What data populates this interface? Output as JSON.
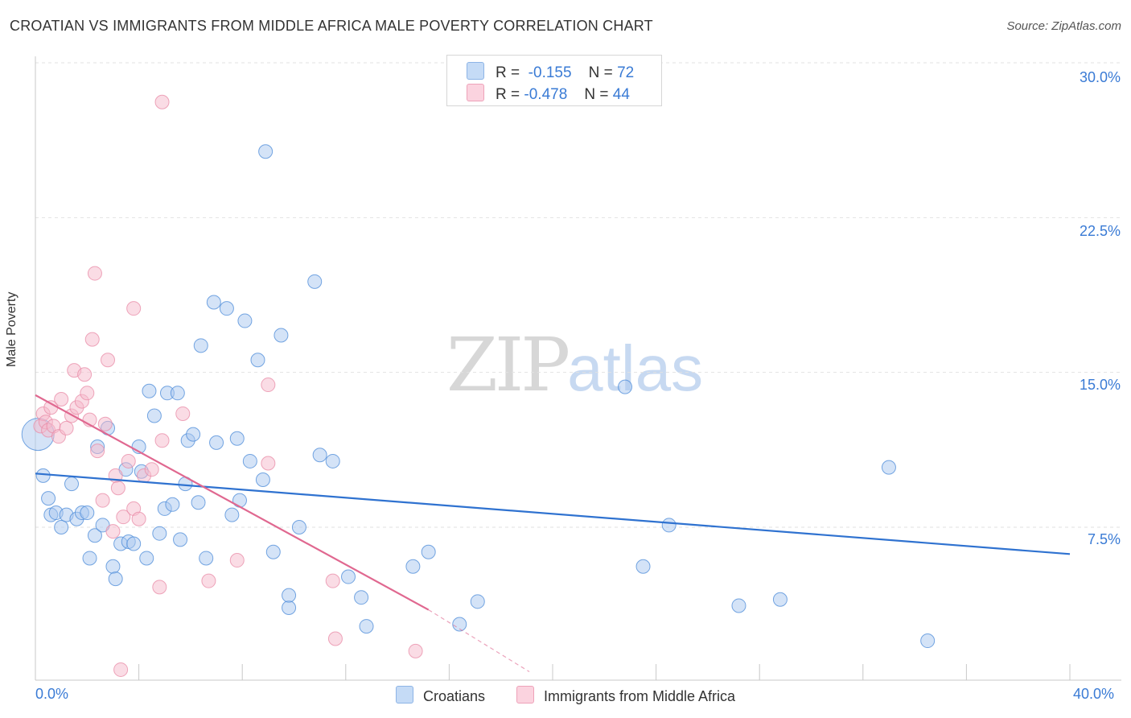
{
  "title": "CROATIAN VS IMMIGRANTS FROM MIDDLE AFRICA MALE POVERTY CORRELATION CHART",
  "source": "Source: ZipAtlas.com",
  "watermark": {
    "zip": "ZIP",
    "atlas": "atlas"
  },
  "legend": {
    "r_label": "R =",
    "n_label": "N =",
    "rows": [
      {
        "r": "-0.155",
        "n": "72",
        "color": "#a9c8f0"
      },
      {
        "r": "-0.478",
        "n": "44",
        "color": "#f6b9cb"
      }
    ]
  },
  "bottom_legend": [
    {
      "label": "Croatians",
      "color": "#a9c8f0"
    },
    {
      "label": "Immigrants from Middle Africa",
      "color": "#f6b9cb"
    }
  ],
  "y_ticks": [
    "30.0%",
    "22.5%",
    "15.0%",
    "7.5%"
  ],
  "x_ticks": [
    "0.0%",
    "40.0%"
  ],
  "chart_data": {
    "type": "scatter",
    "title": "CROATIAN VS IMMIGRANTS FROM MIDDLE AFRICA MALE POVERTY CORRELATION CHART",
    "xlabel": "",
    "ylabel": "Male Poverty",
    "xlim": [
      0,
      40
    ],
    "ylim": [
      0,
      30.7
    ],
    "y_gridlines": [
      7.5,
      15.0,
      22.5,
      30.0
    ],
    "legend_position": "top-center",
    "series": [
      {
        "name": "Croatians",
        "color": "#4a8ad8",
        "fill": "#a9c8f0",
        "trendline": {
          "x": [
            0,
            40
          ],
          "y": [
            10.1,
            6.2
          ],
          "color": "#2f72d0"
        },
        "points": [
          [
            0.1,
            12.0
          ],
          [
            0.3,
            10.0
          ],
          [
            0.5,
            8.9
          ],
          [
            0.6,
            8.1
          ],
          [
            0.8,
            8.2
          ],
          [
            1.0,
            7.5
          ],
          [
            1.2,
            8.1
          ],
          [
            1.4,
            9.6
          ],
          [
            1.6,
            7.9
          ],
          [
            1.8,
            8.2
          ],
          [
            2.0,
            8.2
          ],
          [
            2.1,
            6.0
          ],
          [
            2.3,
            7.1
          ],
          [
            2.4,
            11.4
          ],
          [
            2.6,
            7.6
          ],
          [
            2.8,
            12.3
          ],
          [
            3.0,
            5.6
          ],
          [
            3.1,
            5.0
          ],
          [
            3.3,
            6.7
          ],
          [
            3.5,
            10.3
          ],
          [
            3.6,
            6.8
          ],
          [
            3.8,
            6.7
          ],
          [
            4.0,
            11.4
          ],
          [
            4.1,
            10.2
          ],
          [
            4.3,
            6.0
          ],
          [
            4.4,
            14.1
          ],
          [
            4.6,
            12.9
          ],
          [
            4.8,
            7.2
          ],
          [
            5.0,
            8.4
          ],
          [
            5.1,
            14.0
          ],
          [
            5.3,
            8.6
          ],
          [
            5.5,
            14.0
          ],
          [
            5.6,
            6.9
          ],
          [
            5.8,
            9.6
          ],
          [
            5.9,
            11.7
          ],
          [
            6.1,
            12.0
          ],
          [
            6.3,
            8.7
          ],
          [
            6.4,
            16.3
          ],
          [
            6.6,
            6.0
          ],
          [
            6.9,
            18.4
          ],
          [
            7.0,
            11.6
          ],
          [
            7.4,
            18.1
          ],
          [
            7.6,
            8.1
          ],
          [
            7.8,
            11.8
          ],
          [
            7.9,
            8.8
          ],
          [
            8.3,
            10.7
          ],
          [
            8.1,
            17.5
          ],
          [
            8.6,
            15.6
          ],
          [
            8.8,
            9.8
          ],
          [
            8.9,
            25.7
          ],
          [
            9.2,
            6.3
          ],
          [
            9.5,
            16.8
          ],
          [
            9.8,
            3.6
          ],
          [
            9.8,
            4.2
          ],
          [
            10.2,
            7.5
          ],
          [
            10.8,
            19.4
          ],
          [
            11.0,
            11.0
          ],
          [
            11.5,
            10.7
          ],
          [
            12.1,
            5.1
          ],
          [
            12.6,
            4.1
          ],
          [
            12.8,
            2.7
          ],
          [
            14.6,
            5.6
          ],
          [
            15.2,
            6.3
          ],
          [
            16.4,
            2.8
          ],
          [
            17.1,
            3.9
          ],
          [
            22.8,
            14.3
          ],
          [
            23.5,
            5.6
          ],
          [
            24.5,
            7.6
          ],
          [
            27.2,
            3.7
          ],
          [
            28.8,
            4.0
          ],
          [
            33.0,
            10.4
          ],
          [
            34.5,
            2.0
          ]
        ]
      },
      {
        "name": "Immigrants from Middle Africa",
        "color": "#e88aa6",
        "fill": "#f6b9cb",
        "trendline": {
          "x": [
            0,
            15.2
          ],
          "y": [
            13.9,
            3.5
          ],
          "dashed_to": {
            "x": 19.1,
            "y": 0.5
          },
          "color": "#e06890"
        },
        "points": [
          [
            0.2,
            12.4
          ],
          [
            0.3,
            13.0
          ],
          [
            0.4,
            12.6
          ],
          [
            0.5,
            12.2
          ],
          [
            0.6,
            13.3
          ],
          [
            0.7,
            12.4
          ],
          [
            0.9,
            11.9
          ],
          [
            1.0,
            13.7
          ],
          [
            1.2,
            12.3
          ],
          [
            1.4,
            12.9
          ],
          [
            1.5,
            15.1
          ],
          [
            1.6,
            13.3
          ],
          [
            1.8,
            13.6
          ],
          [
            1.9,
            14.9
          ],
          [
            2.0,
            14.0
          ],
          [
            2.1,
            12.7
          ],
          [
            2.2,
            16.6
          ],
          [
            2.3,
            19.8
          ],
          [
            2.4,
            11.2
          ],
          [
            2.6,
            8.8
          ],
          [
            2.7,
            12.5
          ],
          [
            2.8,
            15.6
          ],
          [
            3.0,
            7.3
          ],
          [
            3.1,
            10.0
          ],
          [
            3.2,
            9.4
          ],
          [
            3.3,
            0.6
          ],
          [
            3.4,
            8.0
          ],
          [
            3.6,
            10.7
          ],
          [
            3.8,
            8.4
          ],
          [
            3.8,
            18.1
          ],
          [
            4.0,
            7.9
          ],
          [
            4.2,
            10.0
          ],
          [
            4.5,
            10.3
          ],
          [
            4.8,
            4.6
          ],
          [
            4.9,
            11.7
          ],
          [
            4.9,
            28.1
          ],
          [
            5.7,
            13.0
          ],
          [
            6.7,
            4.9
          ],
          [
            7.8,
            5.9
          ],
          [
            9.0,
            10.6
          ],
          [
            9.0,
            14.4
          ],
          [
            11.5,
            4.9
          ],
          [
            11.6,
            2.1
          ],
          [
            14.7,
            1.5
          ]
        ]
      }
    ]
  }
}
